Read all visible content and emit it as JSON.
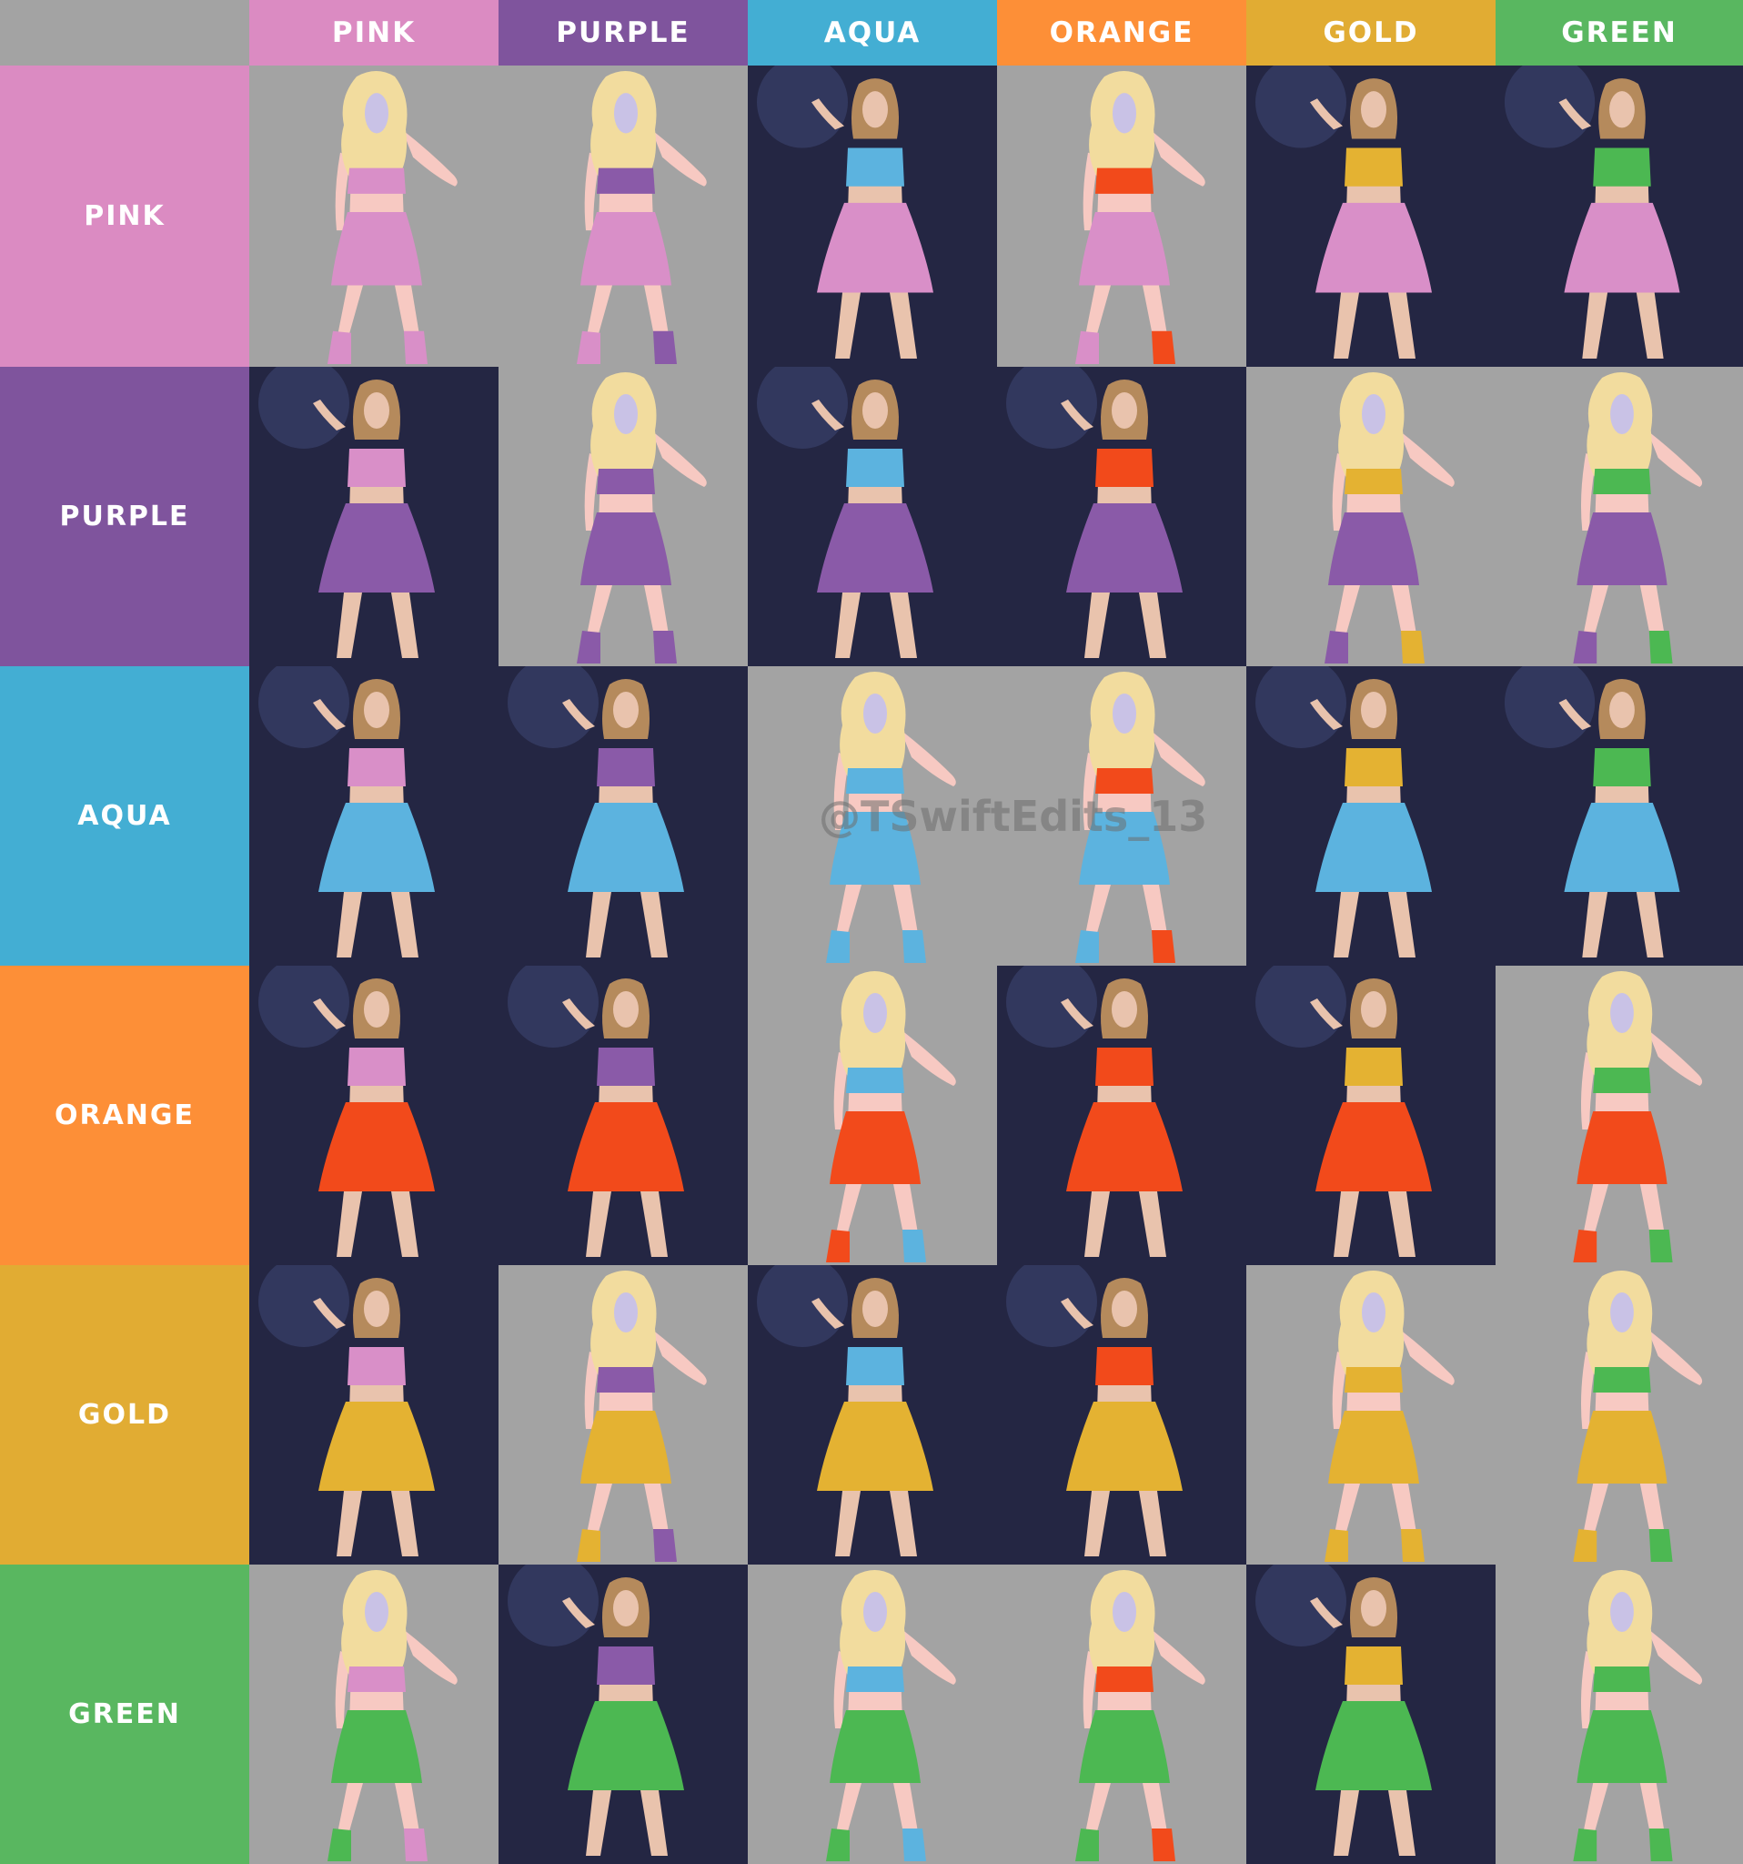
{
  "palette": {
    "pink": "#db8bc2",
    "purple": "#7f549d",
    "aqua": "#43aed3",
    "orange": "#fd8f37",
    "gold": "#e1ac33",
    "green": "#59b760",
    "corner": "#a3a3a3",
    "cell_bg": "#a3a3a3",
    "skin": "#f7c9c2",
    "hair": "#f2dc9e",
    "photo_bg": "#1c1c2c"
  },
  "column_headers": [
    {
      "label": "PINK",
      "color": "#db8bc2"
    },
    {
      "label": "PURPLE",
      "color": "#7f549d"
    },
    {
      "label": "AQUA",
      "color": "#43aed3"
    },
    {
      "label": "ORANGE",
      "color": "#fd8f37"
    },
    {
      "label": "GOLD",
      "color": "#e1ac33"
    },
    {
      "label": "GREEN",
      "color": "#59b760"
    }
  ],
  "row_headers": [
    {
      "label": "PINK",
      "color": "#db8bc2"
    },
    {
      "label": "PURPLE",
      "color": "#7f549d"
    },
    {
      "label": "AQUA",
      "color": "#43aed3"
    },
    {
      "label": "ORANGE",
      "color": "#fd8f37"
    },
    {
      "label": "GOLD",
      "color": "#e1ac33"
    },
    {
      "label": "GREEN",
      "color": "#59b760"
    }
  ],
  "figure_colors": {
    "top": {
      "PINK": "#d98fc8",
      "PURPLE": "#8a5aa8",
      "AQUA": "#5cb3df",
      "ORANGE": "#f24a1b",
      "GOLD": "#e4b232",
      "GREEN": "#4cb852"
    },
    "skirt": {
      "PINK": "#d98fc8",
      "PURPLE": "#8a5aa8",
      "AQUA": "#5cb3df",
      "ORANGE": "#f24a1b",
      "GOLD": "#e4b232",
      "GREEN": "#4cb852"
    }
  },
  "cells": [
    [
      "figure",
      "figure",
      "photo",
      "figure",
      "photo",
      "photo"
    ],
    [
      "photo",
      "figure",
      "photo",
      "photo",
      "figure",
      "figure"
    ],
    [
      "photo",
      "photo",
      "figure",
      "figure",
      "photo",
      "photo"
    ],
    [
      "photo",
      "photo",
      "figure",
      "photo",
      "photo",
      "figure"
    ],
    [
      "photo",
      "figure",
      "photo",
      "photo",
      "figure",
      "figure"
    ],
    [
      "figure",
      "photo",
      "figure",
      "figure",
      "photo",
      "figure"
    ]
  ],
  "watermark": "@TSwiftEdits_13"
}
